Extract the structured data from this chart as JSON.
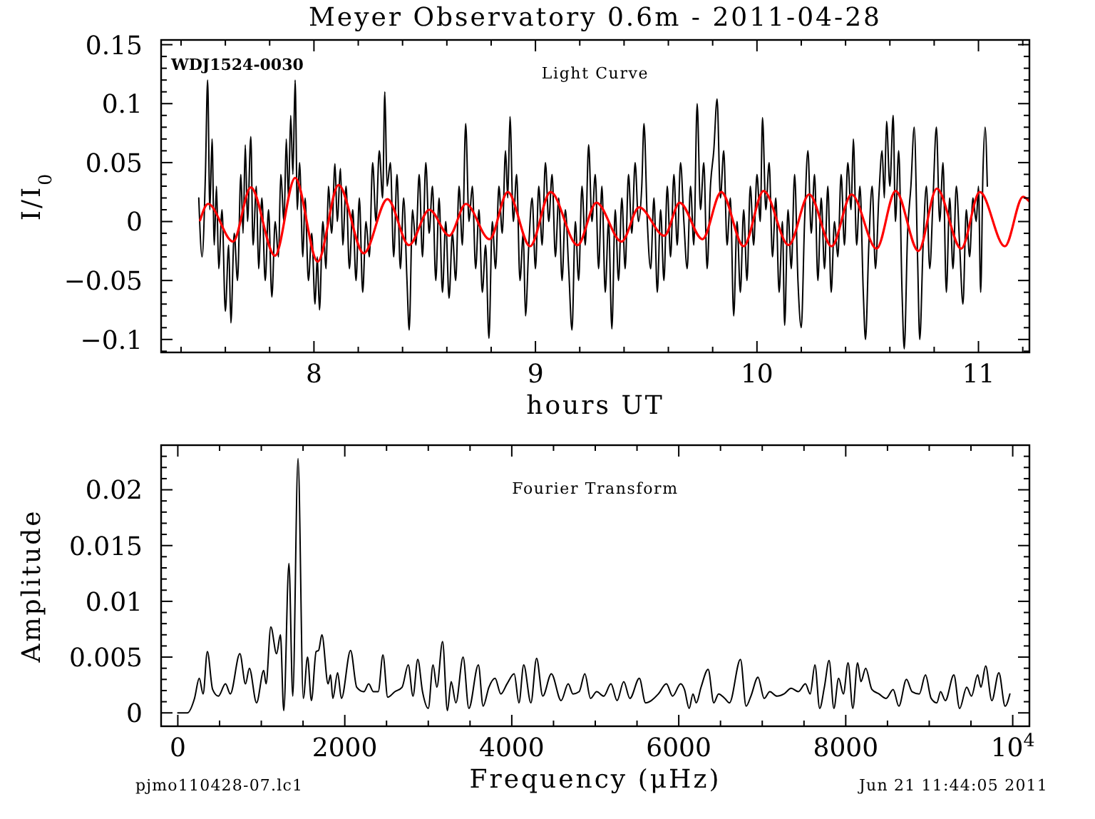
{
  "chart_data": [
    {
      "type": "line",
      "title": "Meyer Observatory 0.6m - 2011-04-28",
      "xlabel": "hours UT",
      "ylabel": "I/I$_{0}$",
      "annotations": [
        "WDJ1524-0030",
        "Light Curve"
      ],
      "xlim": [
        7.31,
        11.23
      ],
      "ylim": [
        -0.111,
        0.154
      ],
      "xticks": [
        {
          "value": 7.4,
          "label": null
        },
        {
          "value": 7.6,
          "label": null
        },
        {
          "value": 7.8,
          "label": null
        },
        8,
        {
          "value": 8.2,
          "label": null
        },
        {
          "value": 8.4,
          "label": null
        },
        {
          "value": 8.6,
          "label": null
        },
        {
          "value": 8.8,
          "label": null
        },
        9,
        {
          "value": 9.2,
          "label": null
        },
        {
          "value": 9.4,
          "label": null
        },
        {
          "value": 9.6,
          "label": null
        },
        {
          "value": 9.8,
          "label": null
        },
        10,
        {
          "value": 10.2,
          "label": null
        },
        {
          "value": 10.4,
          "label": null
        },
        {
          "value": 10.6,
          "label": null
        },
        {
          "value": 10.8,
          "label": null
        },
        11,
        {
          "value": 11.2,
          "label": null
        }
      ],
      "yticks": [
        {
          "value": -0.11,
          "label": null
        },
        -0.1,
        {
          "value": -0.09,
          "label": null
        },
        {
          "value": -0.08,
          "label": null
        },
        {
          "value": -0.07,
          "label": null
        },
        {
          "value": -0.06,
          "label": null
        },
        -0.05,
        {
          "value": -0.04,
          "label": null
        },
        {
          "value": -0.03,
          "label": null
        },
        {
          "value": -0.02,
          "label": null
        },
        {
          "value": -0.01,
          "label": null
        },
        0,
        {
          "value": 0.01,
          "label": null
        },
        {
          "value": 0.02,
          "label": null
        },
        {
          "value": 0.03,
          "label": null
        },
        {
          "value": 0.04,
          "label": null
        },
        0.05,
        {
          "value": 0.06,
          "label": null
        },
        {
          "value": 0.07,
          "label": null
        },
        {
          "value": 0.08,
          "label": null
        },
        {
          "value": 0.09,
          "label": null
        },
        0.1,
        {
          "value": 0.11,
          "label": null
        },
        {
          "value": 0.12,
          "label": null
        },
        {
          "value": 0.13,
          "label": null
        },
        {
          "value": 0.14,
          "label": null
        },
        0.15
      ],
      "series": [
        {
          "color": "#000000",
          "x": [
            7.48,
            7.495,
            7.51,
            7.52,
            7.53,
            7.54,
            7.55,
            7.56,
            7.57,
            7.585,
            7.6,
            7.615,
            7.625,
            7.64,
            7.655,
            7.67,
            7.68,
            7.69,
            7.7,
            7.715,
            7.725,
            7.74,
            7.75,
            7.765,
            7.78,
            7.795,
            7.81,
            7.825,
            7.84,
            7.85,
            7.865,
            7.875,
            7.885,
            7.895,
            7.905,
            7.915,
            7.925,
            7.935,
            7.95,
            7.96,
            7.975,
            7.99,
            8.005,
            8.015,
            8.025,
            8.04,
            8.055,
            8.065,
            8.08,
            8.095,
            8.105,
            8.12,
            8.13,
            8.145,
            8.16,
            8.175,
            8.19,
            8.205,
            8.22,
            8.235,
            8.25,
            8.265,
            8.28,
            8.295,
            8.31,
            8.32,
            8.33,
            8.345,
            8.36,
            8.375,
            8.39,
            8.405,
            8.42,
            8.43,
            8.445,
            8.46,
            8.475,
            8.49,
            8.505,
            8.52,
            8.535,
            8.55,
            8.565,
            8.58,
            8.595,
            8.61,
            8.625,
            8.64,
            8.655,
            8.67,
            8.685,
            8.7,
            8.715,
            8.73,
            8.745,
            8.76,
            8.775,
            8.79,
            8.805,
            8.82,
            8.835,
            8.85,
            8.865,
            8.875,
            8.885,
            8.9,
            8.915,
            8.93,
            8.945,
            8.955,
            8.97,
            8.985,
            9.0,
            9.015,
            9.03,
            9.045,
            9.06,
            9.075,
            9.09,
            9.105,
            9.12,
            9.135,
            9.15,
            9.165,
            9.18,
            9.195,
            9.21,
            9.225,
            9.24,
            9.255,
            9.27,
            9.285,
            9.3,
            9.315,
            9.33,
            9.345,
            9.36,
            9.375,
            9.39,
            9.405,
            9.42,
            9.435,
            9.45,
            9.465,
            9.48,
            9.49,
            9.505,
            9.52,
            9.535,
            9.55,
            9.565,
            9.58,
            9.595,
            9.61,
            9.625,
            9.64,
            9.655,
            9.67,
            9.685,
            9.7,
            9.715,
            9.73,
            9.745,
            9.76,
            9.775,
            9.79,
            9.805,
            9.82,
            9.835,
            9.85,
            9.865,
            9.88,
            9.895,
            9.91,
            9.925,
            9.94,
            9.955,
            9.97,
            9.985,
            10.0,
            10.015,
            10.025,
            10.04,
            10.055,
            10.07,
            10.085,
            10.1,
            10.115,
            10.125,
            10.14,
            10.155,
            10.17,
            10.185,
            10.2,
            10.215,
            10.23,
            10.245,
            10.26,
            10.275,
            10.29,
            10.305,
            10.32,
            10.335,
            10.35,
            10.365,
            10.38,
            10.395,
            10.41,
            10.425,
            10.435,
            10.45,
            10.465,
            10.48,
            10.49,
            10.505,
            10.52,
            10.535,
            10.55,
            10.565,
            10.575,
            10.585,
            10.6,
            10.615,
            10.625,
            10.64,
            10.655,
            10.665,
            10.68,
            10.695,
            10.71,
            10.725,
            10.735,
            10.75,
            10.765,
            10.78,
            10.795,
            10.81,
            10.825,
            10.84,
            10.855,
            10.87,
            10.885,
            10.9,
            10.915,
            10.93,
            10.945,
            10.96,
            10.975,
            10.99,
            11.0,
            11.01,
            11.02,
            11.03,
            11.04
          ],
          "values": [
            0.02,
            -0.03,
            0.04,
            0.12,
            0.01,
            0.07,
            -0.02,
            0.03,
            -0.04,
            0.01,
            -0.076,
            -0.02,
            -0.086,
            -0.01,
            -0.05,
            0.04,
            -0.01,
            0.065,
            0.0,
            0.072,
            -0.02,
            0.03,
            -0.04,
            0.02,
            -0.05,
            0.01,
            -0.064,
            0.0,
            -0.03,
            0.04,
            0.0,
            0.07,
            0.02,
            0.09,
            0.04,
            0.12,
            0.01,
            0.05,
            -0.03,
            0.02,
            -0.05,
            -0.01,
            -0.07,
            -0.03,
            -0.075,
            0.0,
            -0.04,
            0.03,
            -0.01,
            0.049,
            0.0,
            0.045,
            -0.02,
            0.03,
            -0.04,
            0.01,
            -0.05,
            0.02,
            -0.06,
            0.0,
            -0.03,
            0.05,
            0.0,
            0.06,
            0.02,
            0.11,
            0.03,
            0.05,
            -0.03,
            0.04,
            -0.04,
            0.02,
            -0.05,
            -0.092,
            0.01,
            -0.02,
            0.04,
            -0.03,
            0.05,
            -0.01,
            0.03,
            -0.05,
            0.02,
            -0.06,
            0.0,
            -0.065,
            -0.01,
            -0.05,
            0.03,
            -0.02,
            0.083,
            0.0,
            0.03,
            -0.04,
            0.01,
            -0.06,
            -0.02,
            -0.099,
            0.0,
            -0.04,
            0.03,
            -0.01,
            0.06,
            0.02,
            0.089,
            0.0,
            0.04,
            -0.05,
            -0.01,
            -0.08,
            -0.02,
            0.02,
            -0.04,
            0.03,
            -0.02,
            0.05,
            0.0,
            0.04,
            -0.03,
            0.02,
            -0.05,
            0.01,
            -0.04,
            -0.092,
            0.0,
            -0.05,
            0.03,
            -0.02,
            0.065,
            0.0,
            0.04,
            -0.04,
            0.03,
            -0.06,
            0.0,
            -0.091,
            0.01,
            -0.05,
            0.02,
            -0.04,
            0.04,
            -0.01,
            0.05,
            0.0,
            0.03,
            0.083,
            0.0,
            -0.04,
            0.02,
            -0.06,
            0.01,
            -0.05,
            0.03,
            -0.03,
            0.04,
            -0.02,
            0.05,
            0.0,
            -0.04,
            0.03,
            -0.02,
            0.1,
            0.01,
            0.05,
            -0.04,
            0.03,
            0.06,
            0.104,
            0.02,
            0.06,
            -0.02,
            0.02,
            -0.08,
            0.0,
            -0.06,
            0.01,
            -0.05,
            0.03,
            -0.02,
            0.04,
            0.0,
            0.088,
            0.01,
            0.05,
            -0.03,
            0.02,
            -0.06,
            0.0,
            -0.088,
            0.01,
            -0.04,
            0.04,
            -0.05,
            -0.09,
            0.0,
            0.06,
            -0.01,
            0.04,
            -0.05,
            0.02,
            -0.04,
            0.03,
            -0.06,
            0.0,
            -0.03,
            0.04,
            -0.02,
            0.05,
            0.01,
            0.07,
            -0.02,
            0.03,
            -0.06,
            -0.1,
            -0.02,
            0.03,
            -0.04,
            0.02,
            0.06,
            0.02,
            0.085,
            0.03,
            0.09,
            0.0,
            0.06,
            -0.06,
            -0.108,
            -0.01,
            0.03,
            0.08,
            -0.03,
            -0.1,
            -0.02,
            0.03,
            -0.04,
            0.02,
            0.08,
            0.0,
            0.05,
            -0.06,
            0.02,
            -0.04,
            0.03,
            -0.02,
            -0.07,
            0.01,
            -0.03,
            0.02,
            0.0,
            0.03,
            -0.06,
            0.04,
            0.08,
            0.03
          ]
        },
        {
          "color": "#ff0000",
          "x": [
            7.486,
            7.522,
            7.635,
            7.715,
            7.824,
            7.915,
            8.017,
            8.111,
            8.225,
            8.332,
            8.429,
            8.521,
            8.611,
            8.686,
            8.793,
            8.875,
            8.976,
            9.068,
            9.19,
            9.275,
            9.389,
            9.468,
            9.582,
            9.651,
            9.754,
            9.839,
            9.94,
            10.03,
            10.143,
            10.236,
            10.337,
            10.427,
            10.54,
            10.626,
            10.729,
            10.812,
            10.922,
            11.006,
            11.119,
            11.201,
            11.23
          ],
          "values": [
            0.001,
            0.015,
            -0.017,
            0.029,
            -0.029,
            0.037,
            -0.034,
            0.031,
            -0.027,
            0.019,
            -0.02,
            0.01,
            -0.012,
            0.015,
            -0.015,
            0.025,
            -0.021,
            0.025,
            -0.02,
            0.016,
            -0.017,
            0.012,
            -0.012,
            0.016,
            -0.015,
            0.025,
            -0.021,
            0.026,
            -0.02,
            0.023,
            -0.021,
            0.023,
            -0.023,
            0.026,
            -0.025,
            0.028,
            -0.023,
            0.025,
            -0.021,
            0.021,
            0.017
          ]
        }
      ]
    },
    {
      "type": "line",
      "xlabel": "Frequency (μHz)",
      "ylabel": "Amplitude",
      "annotations": [
        "Fourier Transform",
        "pjmo110428-07.lc1",
        "Jun 21 11:44:05 2011"
      ],
      "xlim": [
        -200,
        10200
      ],
      "ylim": [
        -0.0012,
        0.024
      ],
      "xticks": [
        0,
        {
          "value": 500,
          "label": null
        },
        {
          "value": 1000,
          "label": null
        },
        {
          "value": 1500,
          "label": null
        },
        2000,
        {
          "value": 2500,
          "label": null
        },
        {
          "value": 3000,
          "label": null
        },
        {
          "value": 3500,
          "label": null
        },
        4000,
        {
          "value": 4500,
          "label": null
        },
        {
          "value": 5000,
          "label": null
        },
        {
          "value": 5500,
          "label": null
        },
        6000,
        {
          "value": 6500,
          "label": null
        },
        {
          "value": 7000,
          "label": null
        },
        {
          "value": 7500,
          "label": null
        },
        8000,
        {
          "value": 8500,
          "label": null
        },
        {
          "value": 9000,
          "label": null
        },
        {
          "value": 9500,
          "label": null
        },
        {
          "value": 10000,
          "label": "10$^{4}$"
        }
      ],
      "yticks": [
        0,
        {
          "value": 0.001,
          "label": null
        },
        {
          "value": 0.002,
          "label": null
        },
        {
          "value": 0.003,
          "label": null
        },
        {
          "value": 0.004,
          "label": null
        },
        0.005,
        {
          "value": 0.006,
          "label": null
        },
        {
          "value": 0.007,
          "label": null
        },
        {
          "value": 0.008,
          "label": null
        },
        {
          "value": 0.009,
          "label": null
        },
        0.01,
        {
          "value": 0.011,
          "label": null
        },
        {
          "value": 0.012,
          "label": null
        },
        {
          "value": 0.013,
          "label": null
        },
        {
          "value": 0.014,
          "label": null
        },
        0.015,
        {
          "value": 0.016,
          "label": null
        },
        {
          "value": 0.017,
          "label": null
        },
        {
          "value": 0.018,
          "label": null
        },
        {
          "value": 0.019,
          "label": null
        },
        0.02,
        {
          "value": 0.021,
          "label": null
        },
        {
          "value": 0.022,
          "label": null
        },
        {
          "value": 0.023,
          "label": null
        }
      ],
      "series": [
        {
          "color": "#000000",
          "x": [
            0,
            114,
            200,
            257,
            303,
            354,
            417,
            486,
            571,
            629,
            743,
            811,
            857,
            943,
            1029,
            1057,
            1114,
            1183,
            1229,
            1269,
            1331,
            1377,
            1440,
            1503,
            1554,
            1600,
            1657,
            1686,
            1726,
            1800,
            1829,
            1857,
            1914,
            1960,
            2069,
            2143,
            2229,
            2286,
            2343,
            2400,
            2457,
            2514,
            2600,
            2686,
            2760,
            2817,
            2874,
            2931,
            3000,
            3057,
            3103,
            3171,
            3229,
            3274,
            3331,
            3417,
            3486,
            3600,
            3657,
            3726,
            3800,
            3869,
            3943,
            4029,
            4086,
            4143,
            4229,
            4297,
            4371,
            4474,
            4591,
            4676,
            4733,
            4807,
            4875,
            4943,
            5017,
            5102,
            5188,
            5261,
            5341,
            5415,
            5528,
            5602,
            5670,
            5756,
            5852,
            5926,
            6023,
            6068,
            6125,
            6170,
            6210,
            6267,
            6352,
            6420,
            6477,
            6551,
            6608,
            6739,
            6807,
            6864,
            6949,
            7023,
            7091,
            7176,
            7261,
            7347,
            7432,
            7517,
            7574,
            7631,
            7688,
            7744,
            7801,
            7858,
            7915,
            7972,
            8028,
            8085,
            8142,
            8182,
            8239,
            8313,
            8398,
            8483,
            8568,
            8636,
            8727,
            8795,
            8881,
            8955,
            9023,
            9091,
            9136,
            9193,
            9295,
            9364,
            9449,
            9506,
            9580,
            9619,
            9676,
            9750,
            9834,
            9909,
            9966
          ],
          "values": [
            0,
            0,
            0.0013,
            0.0031,
            0.0017,
            0.0055,
            0.0021,
            0.0015,
            0.0026,
            0.0017,
            0.0053,
            0.0026,
            0.004,
            0.0009,
            0.0038,
            0.0026,
            0.0077,
            0.0053,
            0.007,
            0.0002,
            0.0134,
            0.0015,
            0.0228,
            0.0013,
            0.005,
            0.0011,
            0.0055,
            0.0056,
            0.007,
            0.0026,
            0.0034,
            0.0013,
            0.0036,
            0.0013,
            0.0056,
            0.0023,
            0.0019,
            0.0026,
            0.0019,
            0.0019,
            0.0052,
            0.0014,
            0.0019,
            0.0023,
            0.0043,
            0.0015,
            0.0048,
            0.0019,
            0.0004,
            0.0043,
            0.0023,
            0.0064,
            0.0002,
            0.0028,
            0.0009,
            0.005,
            0.0004,
            0.0043,
            0.0006,
            0.0023,
            0.0031,
            0.0017,
            0.0026,
            0.0035,
            0.0009,
            0.0043,
            0.0009,
            0.0049,
            0.0015,
            0.0035,
            0.0011,
            0.0026,
            0.0017,
            0.0019,
            0.0035,
            0.0013,
            0.0019,
            0.0015,
            0.0026,
            0.0011,
            0.0028,
            0.0013,
            0.0031,
            0.0009,
            0.0011,
            0.0017,
            0.0026,
            0.0015,
            0.0026,
            0.0021,
            0.0004,
            0.0017,
            0.0009,
            0.0023,
            0.0039,
            0.0009,
            0.0017,
            0.0013,
            0.0009,
            0.0048,
            0.0006,
            0.0015,
            0.0032,
            0.0013,
            0.0019,
            0.0015,
            0.0017,
            0.0022,
            0.0019,
            0.0026,
            0.0017,
            0.0043,
            0.0004,
            0.0023,
            0.0047,
            0.0004,
            0.0031,
            0.0017,
            0.0045,
            0.0004,
            0.0045,
            0.0028,
            0.004,
            0.0021,
            0.0017,
            0.0013,
            0.0021,
            0.0006,
            0.003,
            0.0019,
            0.0017,
            0.0034,
            0.0013,
            0.0009,
            0.0019,
            0.0011,
            0.0034,
            0.0004,
            0.0023,
            0.0015,
            0.0034,
            0.0023,
            0.0042,
            0.0011,
            0.0036,
            0.0006,
            0.0017
          ]
        }
      ]
    }
  ]
}
